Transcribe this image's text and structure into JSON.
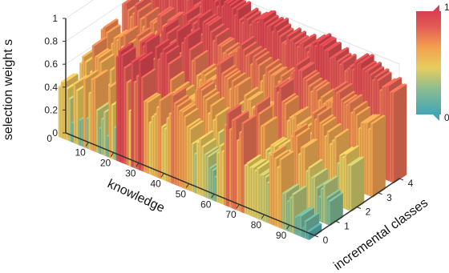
{
  "chart_data": {
    "type": "bar3d",
    "title": "",
    "xlabel": "knowledge",
    "ylabel": "incremental classes",
    "zlabel": "selection weight s",
    "x_ticks": [
      "10",
      "20",
      "30",
      "40",
      "50",
      "60",
      "70",
      "80",
      "90"
    ],
    "y_ticks": [
      "0",
      "1",
      "2",
      "3",
      "4"
    ],
    "z_ticks": [
      "0",
      "0.2",
      "0.4",
      "0.6",
      "0.8",
      "1"
    ],
    "z_origin_label": "0",
    "xlim": [
      1,
      100
    ],
    "ylim": [
      0,
      4
    ],
    "zlim": [
      0,
      1
    ],
    "knowledge_count": 100,
    "class_count": 5,
    "values_rows_by_class_0_to_4": [
      [
        0.44,
        0.49,
        0.5,
        0.45,
        0.37,
        0.17,
        0.52,
        0.47,
        0.22,
        0.24,
        0.6,
        0.26,
        0.49,
        0.62,
        0.64,
        0.37,
        0.22,
        0.31,
        0.38,
        0.18,
        0.62,
        0.47,
        0.28,
        0.91,
        0.97,
        0.94,
        0.84,
        0.72,
        0.48,
        0.92,
        0.75,
        0.81,
        0.96,
        0.82,
        0.62,
        0.62,
        0.45,
        0.51,
        0.54,
        0.61,
        0.68,
        0.46,
        0.45,
        0.55,
        0.6,
        0.77,
        0.71,
        0.69,
        0.66,
        0.66,
        0.63,
        0.55,
        0.54,
        0.42,
        0.34,
        0.45,
        0.49,
        0.43,
        0.37,
        0.36,
        0.27,
        0.26,
        0.21,
        0.43,
        0.5,
        0.46,
        0.7,
        0.82,
        0.68,
        0.77,
        0.79,
        0.61,
        0.69,
        0.78,
        0.42,
        0.45,
        0.42,
        0.43,
        0.41,
        0.44,
        0.39,
        0.4,
        0.39,
        0.35,
        0.6,
        0.63,
        0.59,
        0.52,
        0.6,
        0.31,
        0.33,
        0.26,
        0.3,
        0.34,
        0.15,
        0.17,
        0.18,
        0.08,
        0.15,
        0.07
      ],
      [
        0.52,
        0.59,
        0.55,
        0.38,
        0.48,
        0.72,
        0.63,
        0.63,
        0.6,
        0.38,
        0.37,
        0.4,
        0.57,
        0.23,
        0.7,
        0.46,
        0.64,
        0.52,
        0.56,
        0.53,
        0.35,
        0.64,
        0.44,
        0.65,
        0.92,
        0.89,
        0.94,
        0.77,
        0.64,
        0.49,
        0.93,
        0.83,
        0.89,
        0.94,
        0.91,
        0.83,
        0.7,
        0.6,
        0.63,
        0.55,
        0.62,
        0.47,
        0.58,
        0.59,
        0.6,
        0.6,
        0.7,
        0.73,
        0.72,
        0.67,
        0.65,
        0.54,
        0.62,
        0.5,
        0.55,
        0.41,
        0.27,
        0.31,
        0.27,
        0.57,
        0.41,
        0.29,
        0.49,
        0.48,
        0.44,
        0.53,
        0.5,
        0.63,
        0.67,
        0.74,
        0.79,
        0.72,
        0.62,
        0.64,
        0.43,
        0.41,
        0.49,
        0.49,
        0.39,
        0.5,
        0.41,
        0.4,
        0.48,
        0.4,
        0.64,
        0.69,
        0.66,
        0.51,
        0.58,
        0.59,
        0.39,
        0.43,
        0.35,
        0.37,
        0.28,
        0.21,
        0.29,
        0.34,
        0.23,
        0.21
      ],
      [
        0.69,
        0.72,
        0.68,
        0.51,
        0.6,
        0.66,
        0.65,
        0.69,
        0.61,
        0.73,
        0.4,
        0.67,
        0.61,
        0.32,
        0.76,
        0.73,
        0.57,
        0.65,
        0.64,
        0.75,
        0.59,
        0.58,
        0.52,
        0.73,
        0.9,
        0.94,
        0.89,
        0.81,
        0.74,
        0.67,
        0.95,
        0.76,
        0.86,
        0.91,
        0.94,
        0.83,
        0.74,
        0.77,
        0.63,
        0.6,
        0.68,
        0.66,
        0.62,
        0.62,
        0.65,
        0.6,
        0.8,
        0.82,
        0.74,
        0.72,
        0.71,
        0.63,
        0.71,
        0.67,
        0.69,
        0.54,
        0.47,
        0.63,
        0.6,
        0.61,
        0.55,
        0.48,
        0.55,
        0.56,
        0.47,
        0.52,
        0.6,
        0.64,
        0.65,
        0.81,
        0.77,
        0.83,
        0.71,
        0.7,
        0.56,
        0.6,
        0.6,
        0.64,
        0.56,
        0.58,
        0.49,
        0.54,
        0.59,
        0.53,
        0.72,
        0.67,
        0.72,
        0.66,
        0.65,
        0.56,
        0.61,
        0.51,
        0.55,
        0.59,
        0.37,
        0.45,
        0.44,
        0.48,
        0.39,
        0.4
      ],
      [
        0.79,
        0.81,
        0.75,
        0.7,
        0.74,
        0.83,
        0.78,
        0.72,
        0.66,
        0.77,
        0.61,
        0.73,
        0.73,
        0.66,
        0.82,
        0.82,
        0.74,
        0.69,
        0.81,
        0.82,
        0.71,
        0.63,
        0.7,
        0.78,
        0.91,
        0.93,
        0.87,
        0.8,
        0.87,
        0.77,
        0.94,
        0.8,
        0.92,
        0.91,
        0.91,
        0.86,
        0.79,
        0.84,
        0.77,
        0.77,
        0.72,
        0.75,
        0.73,
        0.72,
        0.77,
        0.78,
        0.82,
        0.86,
        0.82,
        0.78,
        0.8,
        0.72,
        0.8,
        0.78,
        0.74,
        0.61,
        0.67,
        0.75,
        0.72,
        0.7,
        0.71,
        0.62,
        0.67,
        0.73,
        0.69,
        0.64,
        0.73,
        0.79,
        0.82,
        0.88,
        0.84,
        0.85,
        0.79,
        0.78,
        0.74,
        0.7,
        0.74,
        0.73,
        0.65,
        0.69,
        0.64,
        0.67,
        0.68,
        0.68,
        0.8,
        0.78,
        0.8,
        0.74,
        0.72,
        0.71,
        0.74,
        0.66,
        0.7,
        0.66,
        0.55,
        0.61,
        0.62,
        0.63,
        0.58,
        0.64
      ],
      [
        0.92,
        0.96,
        0.9,
        0.82,
        0.9,
        0.94,
        0.89,
        0.86,
        0.87,
        0.94,
        0.82,
        0.86,
        0.91,
        0.84,
        0.96,
        0.94,
        0.88,
        0.85,
        0.93,
        0.92,
        0.83,
        0.85,
        0.84,
        0.91,
        0.99,
        0.98,
        0.96,
        0.95,
        0.94,
        0.9,
        0.98,
        0.92,
        0.97,
        0.97,
        0.96,
        0.94,
        0.89,
        0.95,
        0.87,
        0.85,
        0.92,
        0.9,
        0.86,
        0.9,
        0.92,
        0.91,
        0.95,
        0.96,
        0.93,
        0.91,
        0.93,
        0.88,
        0.94,
        0.9,
        0.87,
        0.82,
        0.82,
        0.9,
        0.87,
        0.89,
        0.86,
        0.84,
        0.88,
        0.9,
        0.86,
        0.83,
        0.89,
        0.93,
        0.91,
        0.96,
        0.94,
        0.94,
        0.91,
        0.92,
        0.86,
        0.88,
        0.9,
        0.86,
        0.84,
        0.87,
        0.8,
        0.83,
        0.86,
        0.84,
        0.92,
        0.91,
        0.93,
        0.88,
        0.87,
        0.89,
        0.86,
        0.82,
        0.86,
        0.84,
        0.76,
        0.8,
        0.81,
        0.83,
        0.78,
        0.79
      ]
    ],
    "colormap": [
      "#42a6b6",
      "#8bbd8f",
      "#e8cd5f",
      "#f3a04f",
      "#e35b57",
      "#d93f4e"
    ],
    "colorbar": {
      "max_label": "1",
      "min_label": "0"
    },
    "background_color": "#ffffff"
  }
}
